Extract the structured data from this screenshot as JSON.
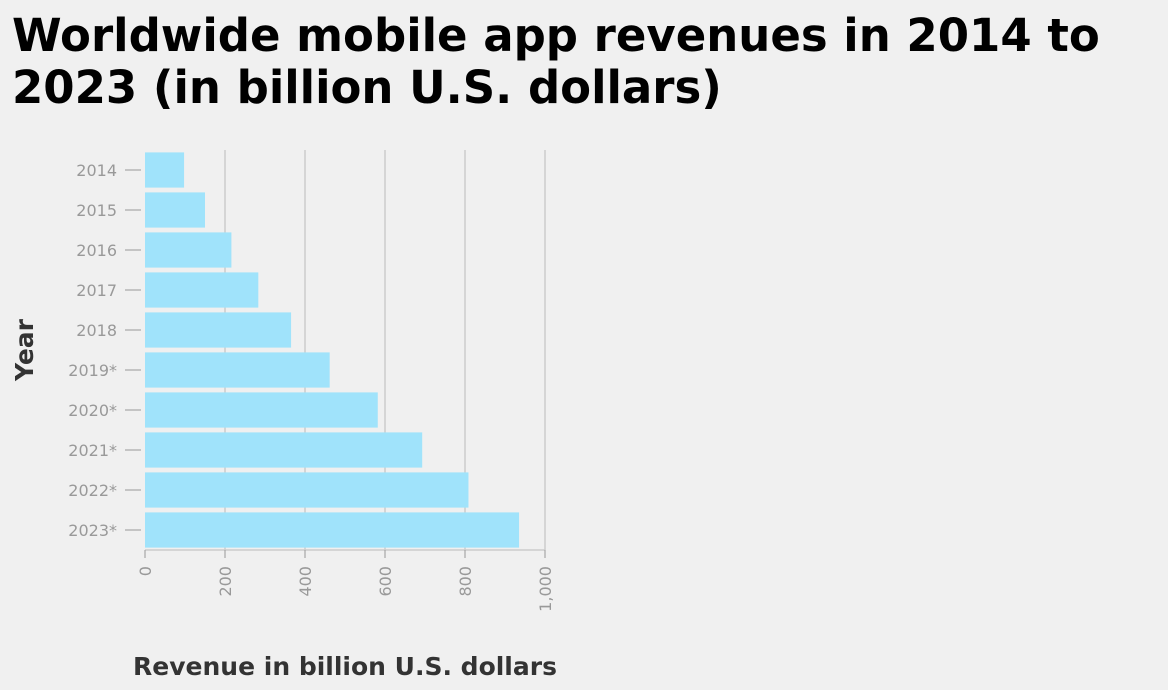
{
  "chart_data": {
    "type": "bar",
    "orientation": "horizontal",
    "title": "Worldwide mobile app revenues in 2014 to 2023 (in billion U.S. dollars)",
    "xlabel": "Revenue in billion U.S. dollars",
    "ylabel": "Year",
    "categories": [
      "2014",
      "2015",
      "2016",
      "2017",
      "2018",
      "2019*",
      "2020*",
      "2021*",
      "2022*",
      "2023*"
    ],
    "values": [
      97.7,
      150,
      216,
      283.3,
      365.2,
      461.7,
      581.9,
      693,
      808.7,
      935.2
    ],
    "xlim": [
      0,
      1000
    ],
    "xticks": [
      0,
      200,
      400,
      600,
      800,
      1000
    ],
    "xtick_labels": [
      "0",
      "200",
      "400",
      "600",
      "800",
      "1,000"
    ],
    "grid": "vertical",
    "bar_color": "#a0e3fb"
  }
}
